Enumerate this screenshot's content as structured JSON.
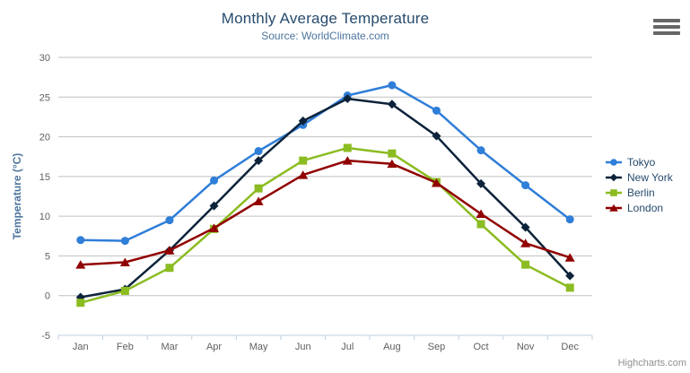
{
  "header": {
    "export_menu_icon": "hamburger-icon"
  },
  "colors": {
    "background": "#ffffff",
    "grid": "#c0c0c0",
    "axis_line": "#c0d0e0",
    "title_text": "#274b6d",
    "subtitle_text": "#4d759e",
    "axis_label_text": "#606060",
    "axis_title_text": "#4d759e",
    "legend_text": "#274b6d",
    "credits_text": "#909090"
  },
  "chart_data": {
    "type": "line",
    "title": "Monthly Average Temperature",
    "subtitle": "Source: WorldClimate.com",
    "xlabel": "",
    "ylabel": "Temperature (°C)",
    "categories": [
      "Jan",
      "Feb",
      "Mar",
      "Apr",
      "May",
      "Jun",
      "Jul",
      "Aug",
      "Sep",
      "Oct",
      "Nov",
      "Dec"
    ],
    "ylim": [
      -5,
      30
    ],
    "yticks": [
      -5,
      0,
      5,
      10,
      15,
      20,
      25,
      30
    ],
    "grid": true,
    "legend_position": "right",
    "credits": "Highcharts.com",
    "series": [
      {
        "name": "Tokyo",
        "color": "#2f7ed8",
        "marker": "circle",
        "values": [
          7.0,
          6.9,
          9.5,
          14.5,
          18.2,
          21.5,
          25.2,
          26.5,
          23.3,
          18.3,
          13.9,
          9.6
        ]
      },
      {
        "name": "New York",
        "color": "#0d233a",
        "marker": "diamond",
        "values": [
          -0.2,
          0.8,
          5.7,
          11.3,
          17.0,
          22.0,
          24.8,
          24.1,
          20.1,
          14.1,
          8.6,
          2.5
        ]
      },
      {
        "name": "Berlin",
        "color": "#8bbc21",
        "marker": "square",
        "values": [
          -0.9,
          0.6,
          3.5,
          8.4,
          13.5,
          17.0,
          18.6,
          17.9,
          14.3,
          9.0,
          3.9,
          1.0
        ]
      },
      {
        "name": "London",
        "color": "#910000",
        "marker": "triangle",
        "values": [
          3.9,
          4.2,
          5.7,
          8.5,
          11.9,
          15.2,
          17.0,
          16.6,
          14.2,
          10.3,
          6.6,
          4.8
        ]
      }
    ]
  }
}
